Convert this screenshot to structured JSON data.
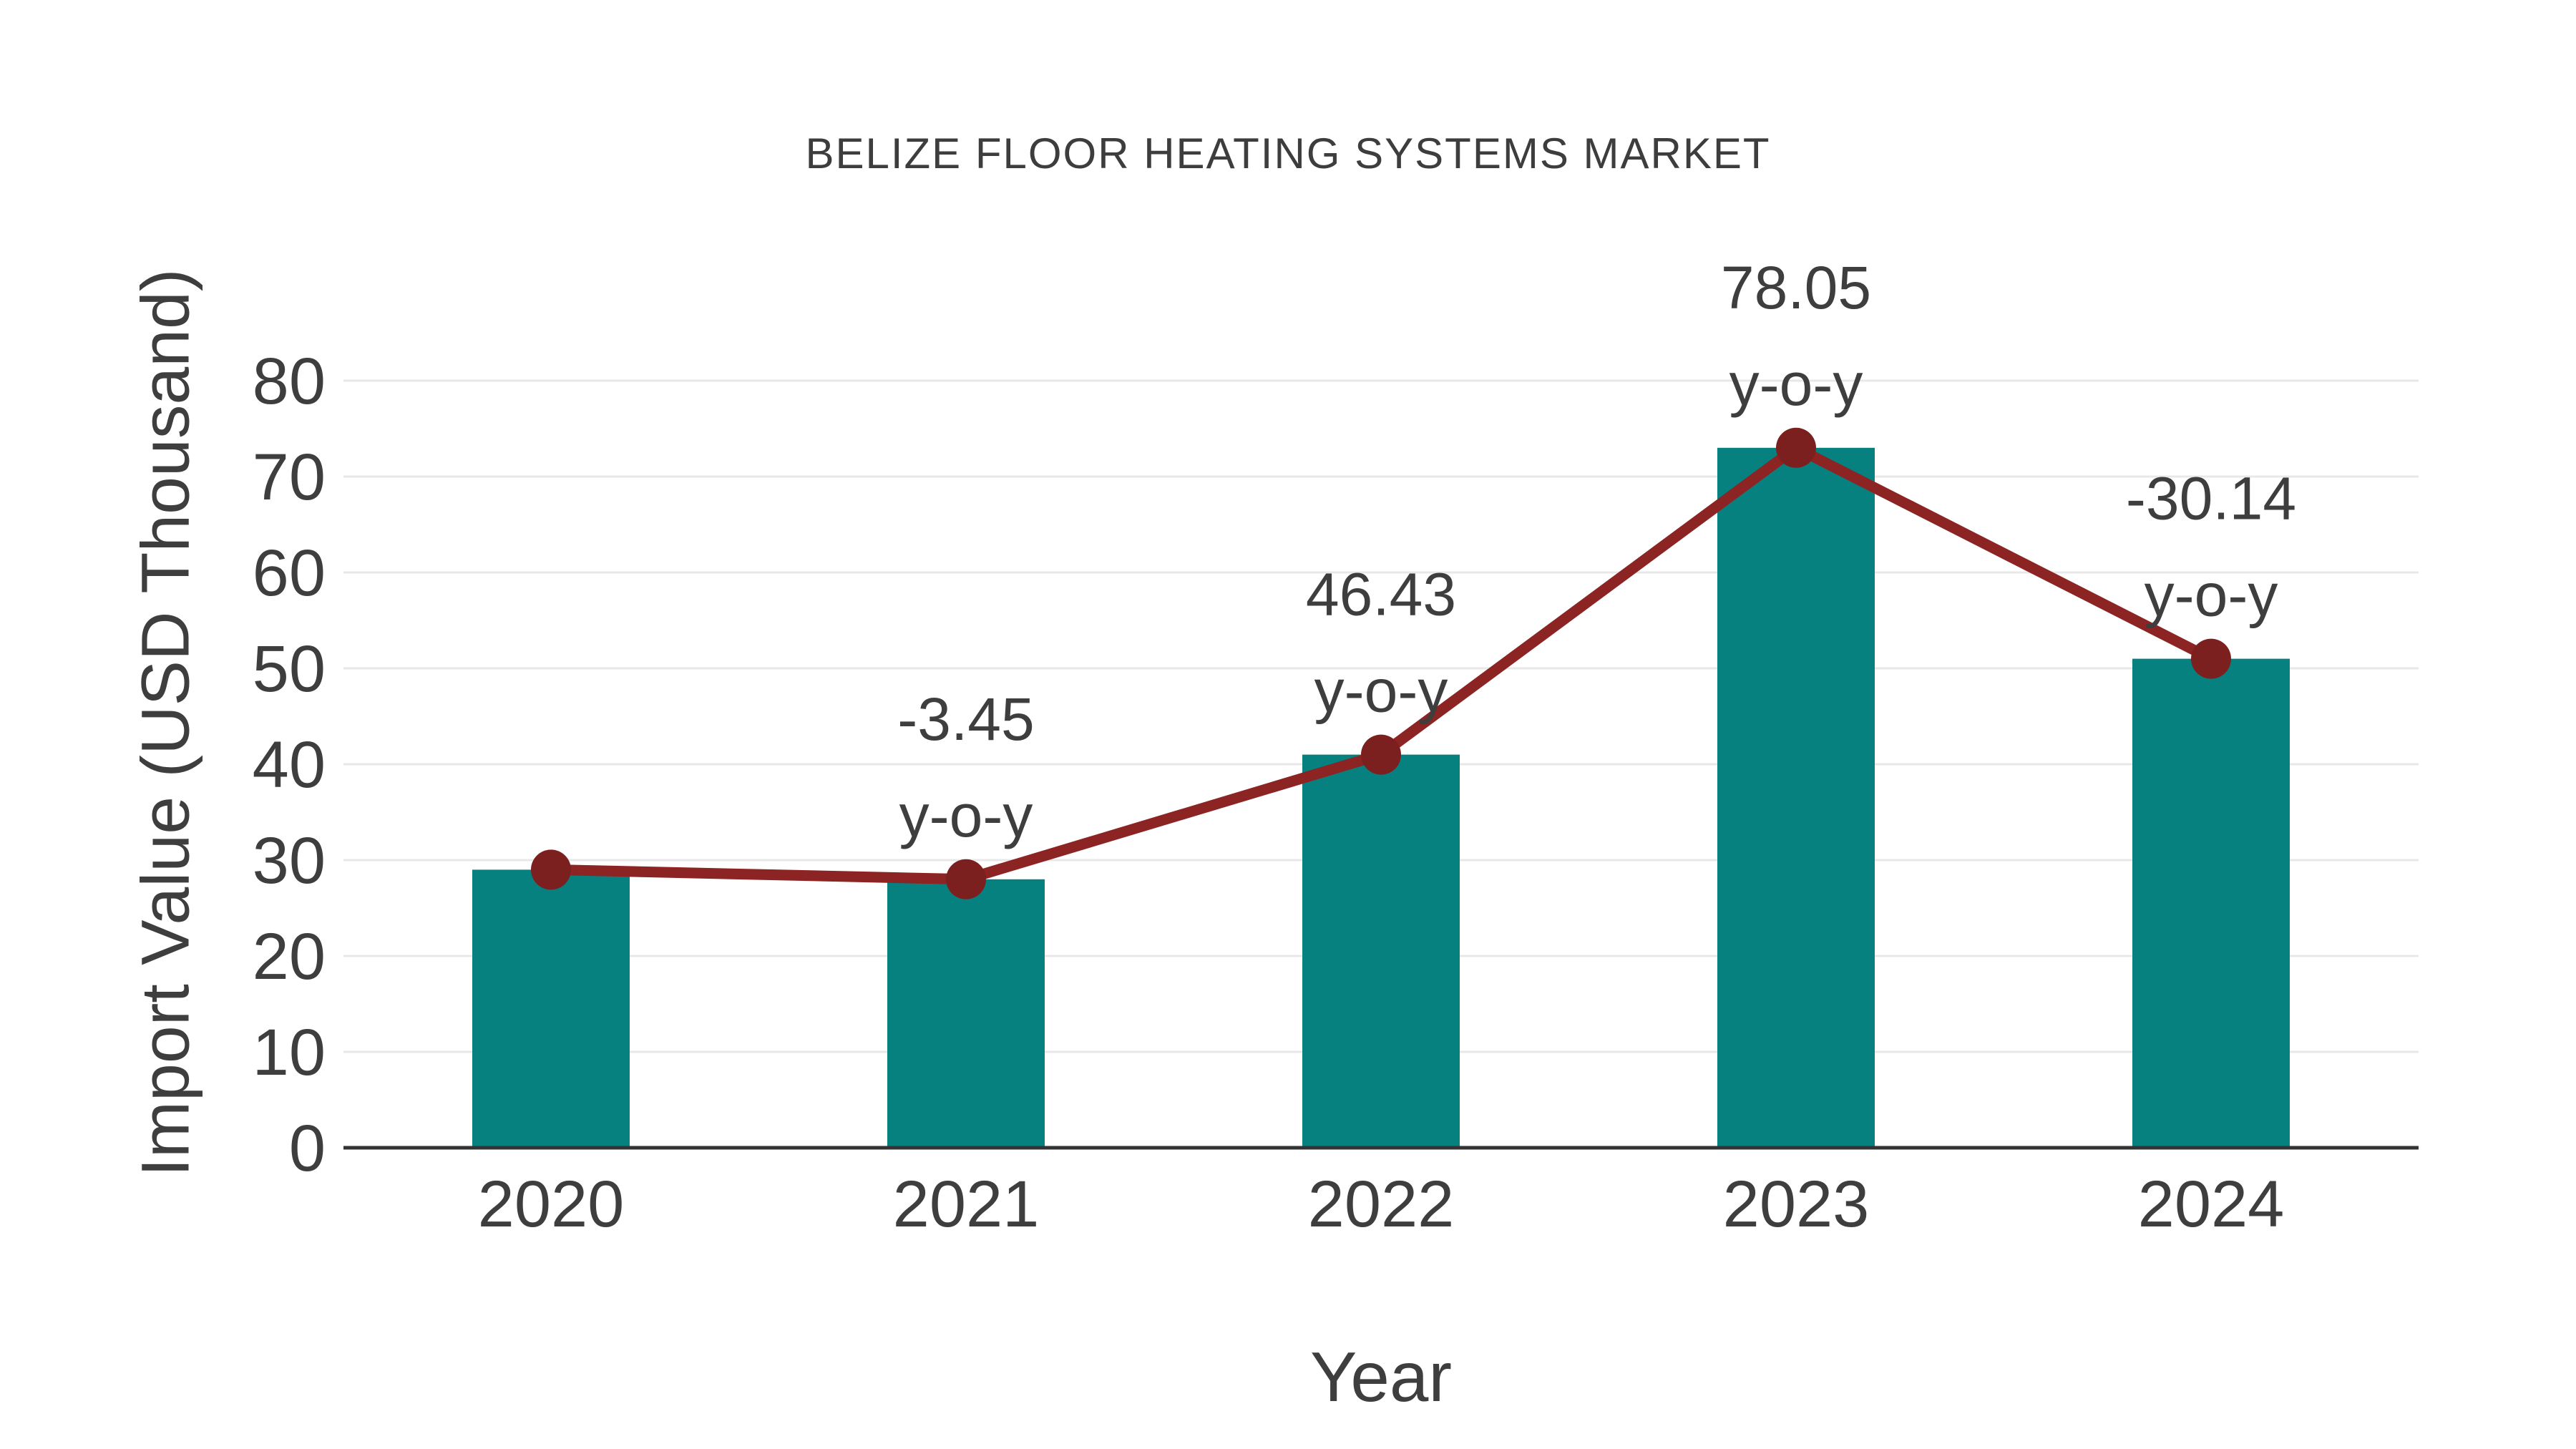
{
  "chart_data": {
    "type": "bar",
    "title": "BELIZE FLOOR HEATING SYSTEMS MARKET",
    "xlabel": "Year",
    "ylabel": "Import Value (USD Thousand)",
    "categories": [
      "2020",
      "2021",
      "2022",
      "2023",
      "2024"
    ],
    "series": [
      {
        "name": "import-value-bars",
        "type": "bar",
        "values": [
          29,
          28,
          41,
          73,
          51
        ],
        "color": "#078180"
      },
      {
        "name": "yoy-trend-line",
        "type": "line",
        "values": [
          29,
          28,
          41,
          73,
          51
        ],
        "color": "#8b2422",
        "marker_color": "#7c1f1f"
      }
    ],
    "annotations": [
      {
        "category": "2021",
        "text_line1": "-3.45",
        "text_line2": "y-o-y"
      },
      {
        "category": "2022",
        "text_line1": "46.43",
        "text_line2": "y-o-y"
      },
      {
        "category": "2023",
        "text_line1": "78.05",
        "text_line2": "y-o-y"
      },
      {
        "category": "2024",
        "text_line1": "-30.14",
        "text_line2": "y-o-y"
      }
    ],
    "yticks": [
      0,
      10,
      20,
      30,
      40,
      50,
      60,
      70,
      80
    ],
    "ylim": [
      0,
      80
    ],
    "grid": true,
    "legend": "none",
    "colors": {
      "grid": "#e8e8e8",
      "axis": "#333333",
      "text": "#3e3e3e",
      "title": "#3d3d3d",
      "background": "#ffffff"
    }
  }
}
